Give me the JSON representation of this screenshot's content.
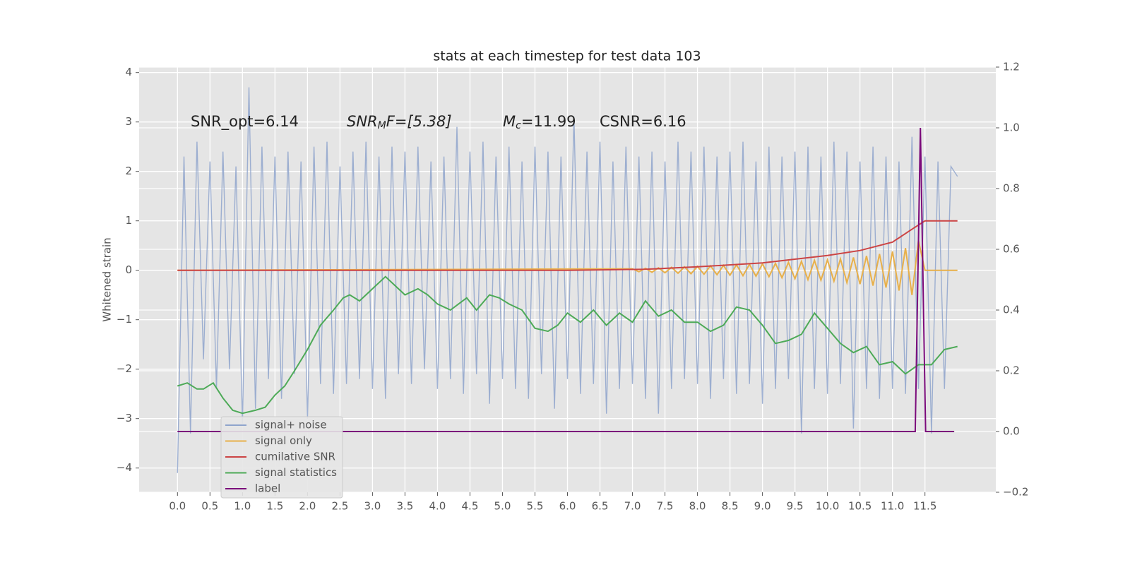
{
  "chart_data": {
    "type": "line",
    "title": "stats at each timestep for test data 103",
    "ylabel": "Whitened strain",
    "annotations": [
      {
        "base": "SNR_opt=6.14"
      },
      {
        "base": "SNR",
        "sub": "M",
        "rest": "F=[5.38]"
      },
      {
        "base": "M",
        "sub": "c",
        "rest": "=11.99"
      },
      {
        "base": "CSNR=6.16"
      }
    ],
    "xlim": [
      -0.59,
      12.59
    ],
    "ylim": [
      -4.49,
      4.11
    ],
    "y2lim": [
      -0.2,
      1.2
    ],
    "xticks": [
      {
        "value": 0,
        "label": "0.0"
      },
      0.5,
      {
        "value": 1,
        "label": "1.0"
      },
      1.5,
      {
        "value": 2,
        "label": "2.0"
      },
      2.5,
      {
        "value": 3,
        "label": "3.0"
      },
      3.5,
      {
        "value": 4,
        "label": "4.0"
      },
      4.5,
      {
        "value": 5,
        "label": "5.0"
      },
      5.5,
      {
        "value": 6,
        "label": "6.0"
      },
      6.5,
      {
        "value": 7,
        "label": "7.0"
      },
      7.5,
      {
        "value": 8,
        "label": "8.0"
      },
      8.5,
      {
        "value": 9,
        "label": "9.0"
      },
      9.5,
      {
        "value": 10,
        "label": "10.0"
      },
      10.5,
      {
        "value": 11,
        "label": "11.0"
      },
      11.5
    ],
    "yticks": [
      {
        "value": -4,
        "label": "−4"
      },
      {
        "value": -3,
        "label": "−3"
      },
      {
        "value": -2,
        "label": "−2"
      },
      {
        "value": -1,
        "label": "−1"
      },
      0,
      1,
      2,
      3,
      4
    ],
    "y2ticks": [
      {
        "value": -0.2,
        "label": "−0.2"
      },
      {
        "value": 0,
        "label": "0.0"
      },
      0.2,
      0.4,
      0.6,
      0.8,
      {
        "value": 1,
        "label": "1.0"
      },
      1.2
    ],
    "grid": true,
    "legend": "lower left",
    "series": [
      {
        "name": "signal+ noise",
        "color": "#8fa5cc",
        "x": [
          0,
          0.1,
          0.2,
          0.3,
          0.4,
          0.5,
          0.6,
          0.7,
          0.8,
          0.9,
          1,
          1.1,
          1.2,
          1.3,
          1.4,
          1.5,
          1.6,
          1.7,
          1.8,
          1.9,
          2,
          2.1,
          2.2,
          2.3,
          2.4,
          2.5,
          2.6,
          2.7,
          2.8,
          2.9,
          3,
          3.1,
          3.2,
          3.3,
          3.4,
          3.5,
          3.6,
          3.7,
          3.8,
          3.9,
          4,
          4.1,
          4.2,
          4.3,
          4.4,
          4.5,
          4.6,
          4.7,
          4.8,
          4.9,
          5,
          5.1,
          5.2,
          5.3,
          5.4,
          5.5,
          5.6,
          5.7,
          5.8,
          5.9,
          6,
          6.1,
          6.2,
          6.3,
          6.4,
          6.5,
          6.6,
          6.7,
          6.8,
          6.9,
          7,
          7.1,
          7.2,
          7.3,
          7.4,
          7.5,
          7.6,
          7.7,
          7.8,
          7.9,
          8,
          8.1,
          8.2,
          8.3,
          8.4,
          8.5,
          8.6,
          8.7,
          8.8,
          8.9,
          9,
          9.1,
          9.2,
          9.3,
          9.4,
          9.5,
          9.6,
          9.7,
          9.8,
          9.9,
          10,
          10.1,
          10.2,
          10.3,
          10.4,
          10.5,
          10.6,
          10.7,
          10.8,
          10.9,
          11,
          11.1,
          11.2,
          11.3,
          11.4,
          11.5,
          11.6,
          11.7,
          11.8,
          11.9,
          12
        ],
        "values": [
          -4.1,
          2.3,
          -3.3,
          2.6,
          -1.8,
          2.2,
          -2.4,
          2.4,
          -2.0,
          2.1,
          -3.1,
          3.7,
          -2.8,
          2.5,
          -2.2,
          2.3,
          -2.6,
          2.4,
          -2.1,
          2.2,
          -3.0,
          2.5,
          -2.3,
          2.6,
          -2.5,
          2.1,
          -2.3,
          2.4,
          -2.2,
          2.6,
          -2.4,
          2.3,
          -2.6,
          2.5,
          -2.1,
          2.4,
          -2.3,
          2.5,
          -2.0,
          2.2,
          -2.4,
          2.3,
          -2.2,
          2.9,
          -2.5,
          2.4,
          -2.1,
          2.6,
          -2.7,
          2.3,
          -2.2,
          2.5,
          -2.4,
          2.2,
          -2.6,
          2.5,
          -2.1,
          2.4,
          -2.8,
          2.3,
          -2.2,
          3.1,
          -2.5,
          2.4,
          -2.3,
          2.6,
          -2.9,
          2.2,
          -2.4,
          2.5,
          -2.3,
          2.3,
          -2.6,
          2.4,
          -2.9,
          2.2,
          -2.4,
          2.6,
          -2.2,
          2.4,
          -2.3,
          2.5,
          -2.6,
          2.3,
          -2.2,
          2.4,
          -2.5,
          2.6,
          -2.3,
          2.2,
          -2.7,
          2.5,
          -2.4,
          2.3,
          -2.2,
          2.4,
          -3.3,
          2.5,
          -2.4,
          2.3,
          -2.5,
          2.6,
          -2.3,
          2.4,
          -3.2,
          2.2,
          -2.4,
          2.5,
          -2.6,
          2.3,
          -2.4,
          2.2,
          -2.5,
          2.7,
          -2.4,
          2.3,
          -3.3,
          2.2,
          -2.4,
          2.1,
          1.9
        ]
      },
      {
        "name": "signal only",
        "color": "#e8b04a",
        "x": [
          0,
          7,
          7.1,
          7.2,
          7.3,
          7.4,
          7.5,
          7.6,
          7.7,
          7.8,
          7.9,
          8,
          8.1,
          8.2,
          8.3,
          8.4,
          8.5,
          8.6,
          8.7,
          8.8,
          8.9,
          9,
          9.1,
          9.2,
          9.3,
          9.4,
          9.5,
          9.6,
          9.7,
          9.8,
          9.9,
          10,
          10.1,
          10.2,
          10.3,
          10.4,
          10.5,
          10.6,
          10.7,
          10.8,
          10.9,
          11,
          11.1,
          11.2,
          11.3,
          11.4,
          11.5,
          12
        ],
        "values": [
          0,
          0.03,
          -0.03,
          0.04,
          -0.04,
          0.05,
          -0.05,
          0.06,
          -0.06,
          0.07,
          -0.07,
          0.08,
          -0.08,
          0.09,
          -0.09,
          0.1,
          -0.1,
          0.11,
          -0.11,
          0.12,
          -0.12,
          0.13,
          -0.13,
          0.14,
          -0.15,
          0.16,
          -0.17,
          0.18,
          -0.19,
          0.2,
          -0.2,
          0.21,
          -0.22,
          0.23,
          -0.25,
          0.26,
          -0.28,
          0.29,
          -0.31,
          0.33,
          -0.35,
          0.38,
          -0.41,
          0.45,
          -0.5,
          0.6,
          0,
          0
        ]
      },
      {
        "name": "cumilative SNR",
        "color": "#cc4444",
        "x": [
          0,
          6,
          7.2,
          8,
          9,
          10,
          10.5,
          11,
          11.3,
          11.5,
          12
        ],
        "values": [
          0,
          0,
          0.02,
          0.07,
          0.15,
          0.3,
          0.4,
          0.57,
          0.83,
          1,
          1
        ]
      },
      {
        "name": "signal statistics",
        "color": "#4daa57",
        "axis": "y2",
        "x": [
          0,
          0.15,
          0.3,
          0.4,
          0.55,
          0.7,
          0.85,
          1,
          1.2,
          1.35,
          1.5,
          1.65,
          1.8,
          2,
          2.2,
          2.4,
          2.55,
          2.65,
          2.8,
          3,
          3.2,
          3.35,
          3.5,
          3.7,
          3.85,
          4,
          4.2,
          4.45,
          4.6,
          4.8,
          4.95,
          5.1,
          5.3,
          5.5,
          5.7,
          5.85,
          6,
          6.2,
          6.4,
          6.6,
          6.8,
          7,
          7.2,
          7.4,
          7.6,
          7.8,
          8,
          8.2,
          8.4,
          8.6,
          8.8,
          9,
          9.2,
          9.4,
          9.6,
          9.8,
          10,
          10.2,
          10.4,
          10.6,
          10.8,
          11,
          11.2,
          11.4,
          11.6,
          11.8,
          12
        ],
        "values": [
          0.15,
          0.16,
          0.14,
          0.14,
          0.16,
          0.11,
          0.07,
          0.06,
          0.07,
          0.08,
          0.12,
          0.15,
          0.2,
          0.27,
          0.35,
          0.4,
          0.44,
          0.45,
          0.43,
          0.47,
          0.51,
          0.48,
          0.45,
          0.47,
          0.45,
          0.42,
          0.4,
          0.44,
          0.4,
          0.45,
          0.44,
          0.42,
          0.4,
          0.34,
          0.33,
          0.35,
          0.39,
          0.36,
          0.4,
          0.35,
          0.39,
          0.36,
          0.43,
          0.38,
          0.4,
          0.36,
          0.36,
          0.33,
          0.35,
          0.41,
          0.4,
          0.35,
          0.29,
          0.3,
          0.32,
          0.39,
          0.34,
          0.29,
          0.26,
          0.28,
          0.22,
          0.23,
          0.19,
          0.22,
          0.22,
          0.27,
          0.28
        ]
      },
      {
        "name": "label",
        "color": "#7b0a7b",
        "axis": "y2",
        "x": [
          0,
          11.35,
          11.43,
          11.51,
          11.95
        ],
        "values": [
          0,
          0,
          1,
          0,
          0
        ]
      }
    ]
  }
}
